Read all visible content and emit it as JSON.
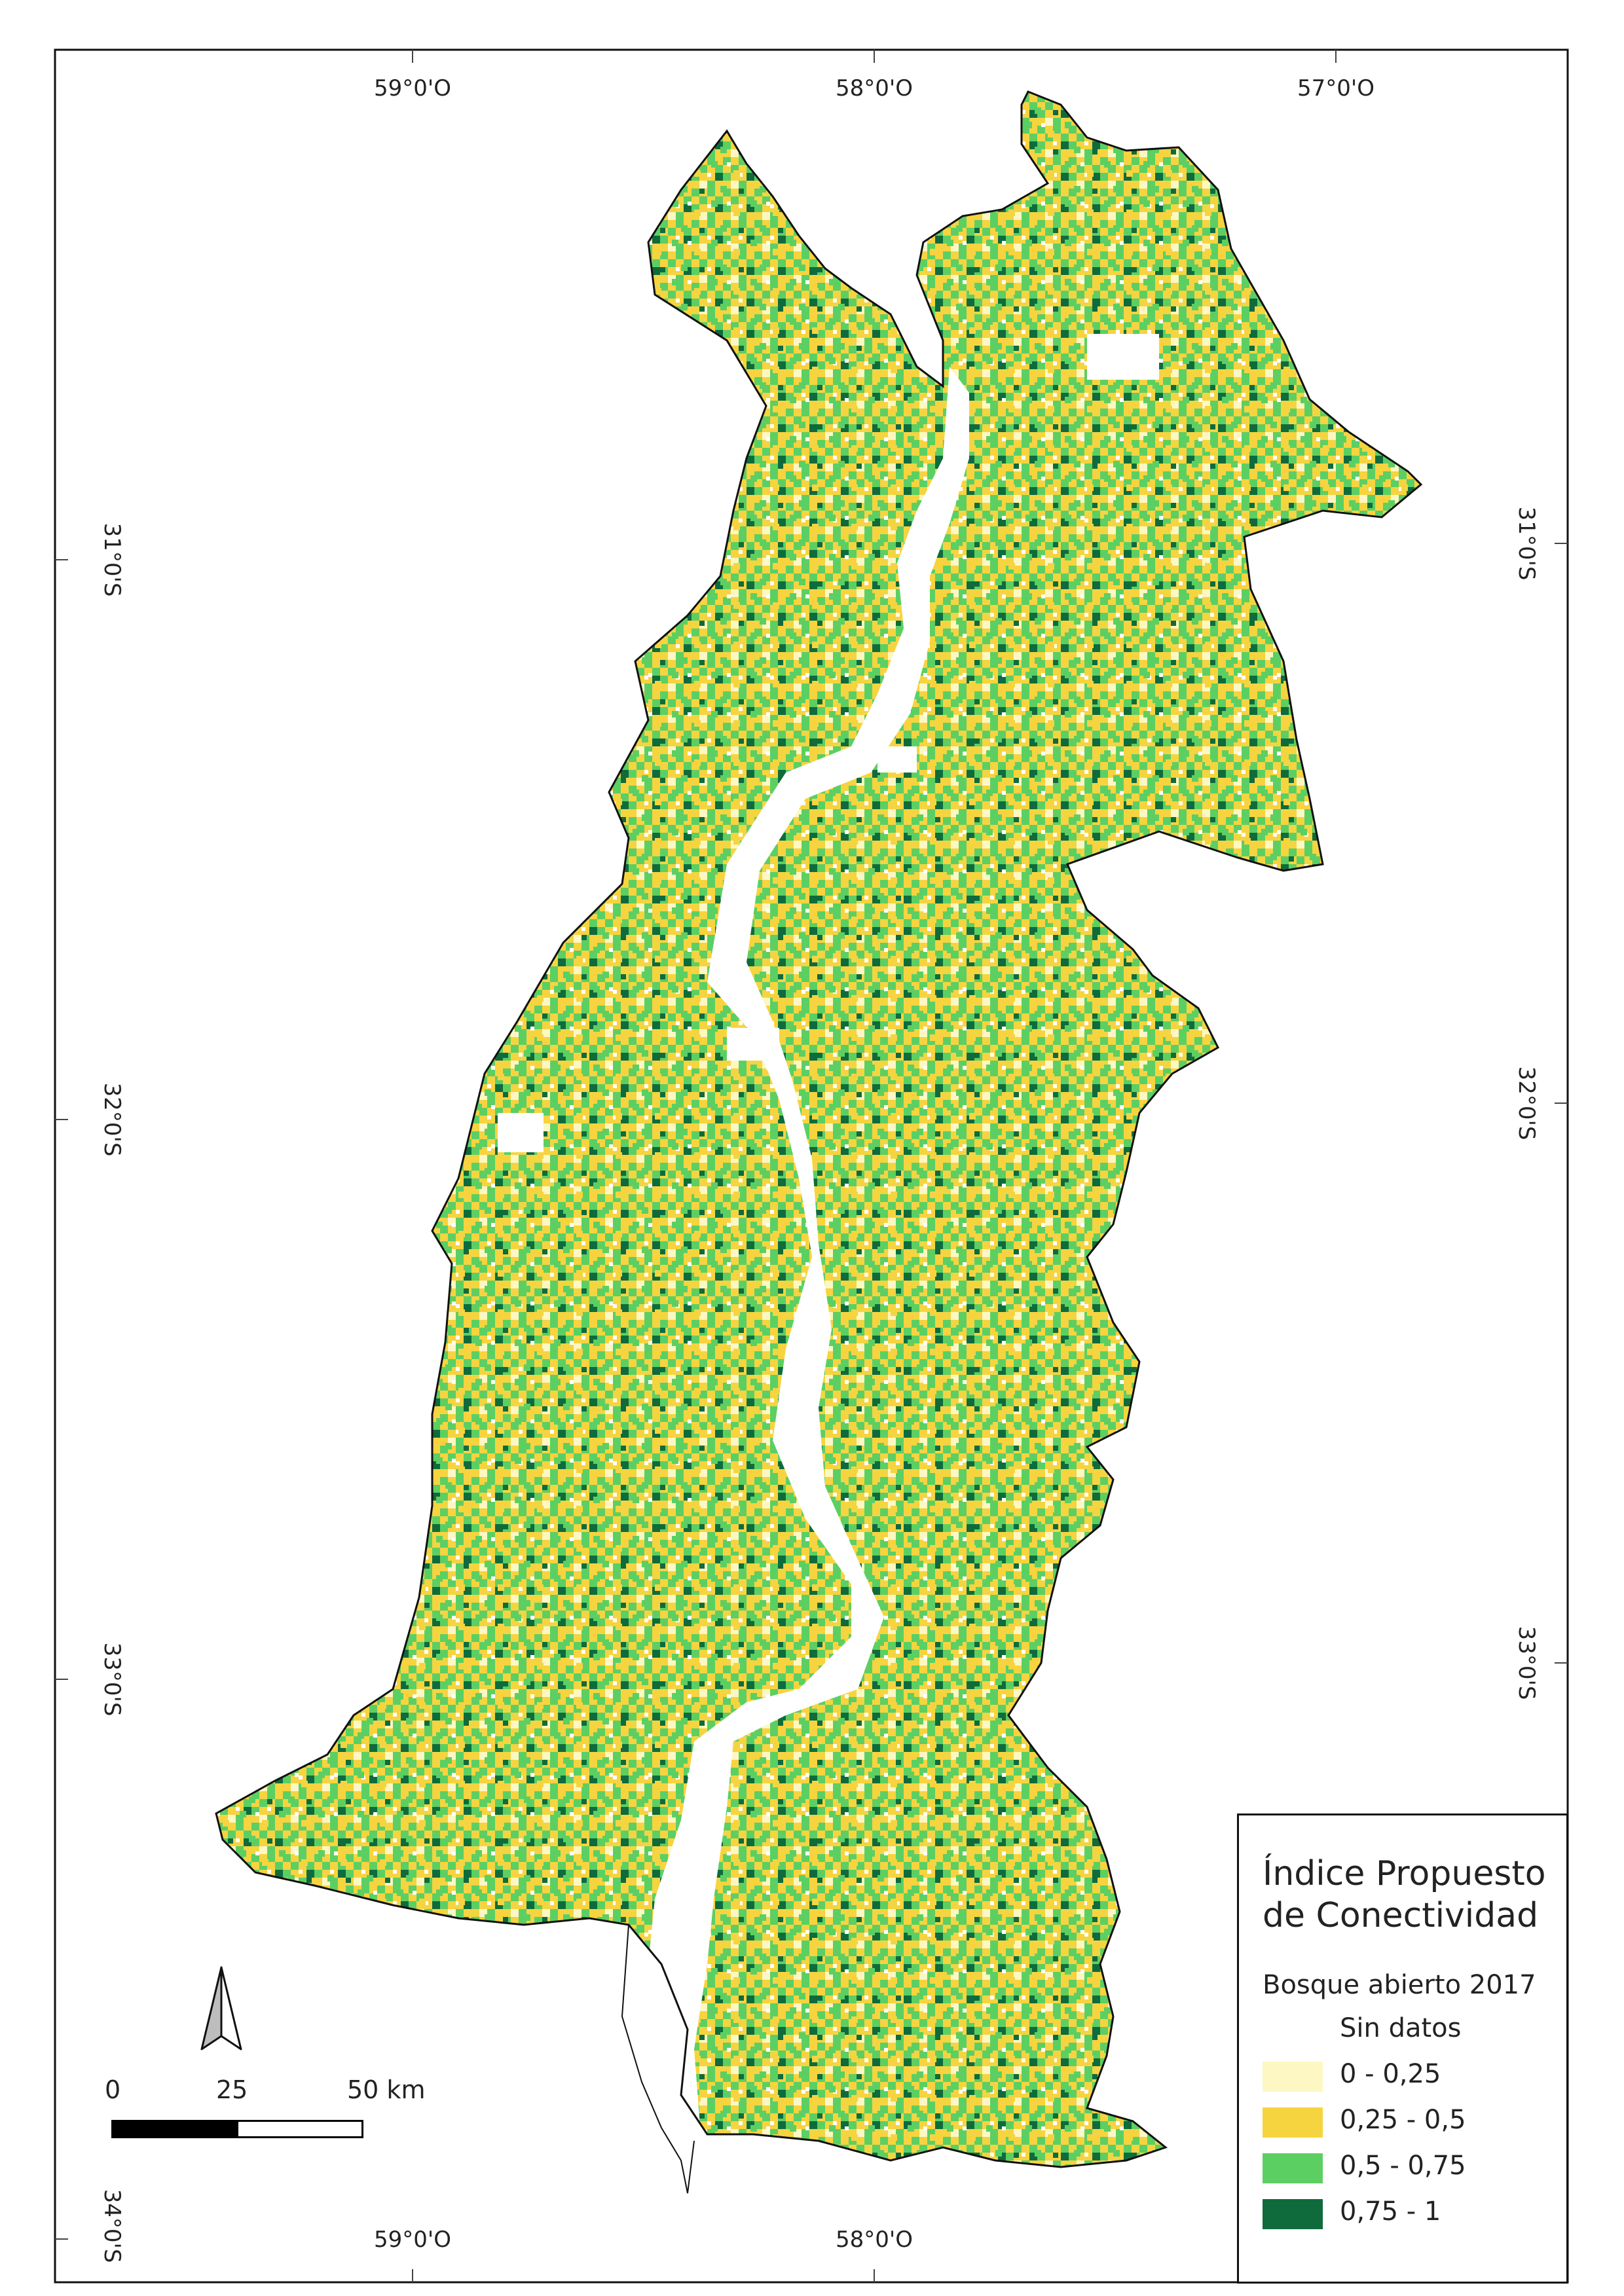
{
  "map": {
    "top_longitude_labels": [
      "59°0'O",
      "58°0'O",
      "57°0'O"
    ],
    "bottom_longitude_labels": [
      "59°0'O",
      "58°0'O"
    ],
    "left_latitude_labels": [
      "31°0'S",
      "32°0'S",
      "33°0'S",
      "34°0'S"
    ],
    "right_latitude_labels": [
      "31°0'S",
      "32°0'S",
      "33°0'S"
    ]
  },
  "legend": {
    "title_line1": "Índice Propuesto",
    "title_line2": "de Conectividad",
    "subtitle": "Bosque abierto 2017",
    "classes": [
      {
        "label": "Sin datos",
        "color": "#ffffff"
      },
      {
        "label": "0 - 0,25",
        "color": "#fdf7c3"
      },
      {
        "label": "0,25 - 0,5",
        "color": "#f6d440"
      },
      {
        "label": "0,5 - 0,75",
        "color": "#5ccf63"
      },
      {
        "label": "0,75 - 1",
        "color": "#0f6b3c"
      }
    ]
  },
  "scale_bar": {
    "labels": [
      "0",
      "25",
      "50 km"
    ]
  },
  "north_arrow": {
    "icon": "north-arrow-icon"
  }
}
